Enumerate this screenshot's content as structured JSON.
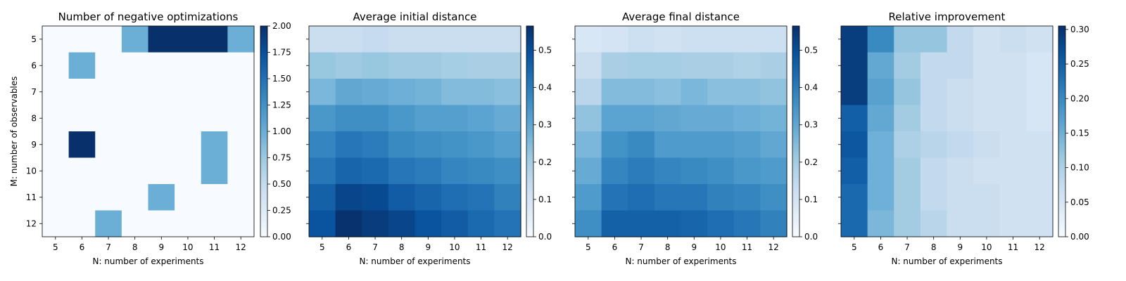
{
  "chart_data": [
    {
      "type": "heatmap",
      "title": "Number of negative optimizations",
      "xlabel": "N: number of experiments",
      "ylabel": "M: number of observables",
      "x": [
        5,
        6,
        7,
        8,
        9,
        10,
        11,
        12
      ],
      "y": [
        5,
        6,
        7,
        8,
        9,
        10,
        11,
        12
      ],
      "values": [
        [
          0,
          0,
          0,
          1,
          2,
          2,
          2,
          1
        ],
        [
          0,
          1,
          0,
          0,
          0,
          0,
          0,
          0
        ],
        [
          0,
          0,
          0,
          0,
          0,
          0,
          0,
          0
        ],
        [
          0,
          0,
          0,
          0,
          0,
          0,
          0,
          0
        ],
        [
          0,
          2,
          0,
          0,
          0,
          0,
          1,
          0
        ],
        [
          0,
          0,
          0,
          0,
          0,
          0,
          1,
          0
        ],
        [
          0,
          0,
          0,
          0,
          1,
          0,
          0,
          0
        ],
        [
          0,
          0,
          1,
          0,
          0,
          0,
          0,
          0
        ]
      ],
      "colorbar": {
        "range": [
          0,
          2
        ],
        "ticks": [
          "0.00",
          "0.25",
          "0.50",
          "0.75",
          "1.00",
          "1.25",
          "1.50",
          "1.75",
          "2.00"
        ]
      },
      "colormap": "Blues"
    },
    {
      "type": "heatmap",
      "title": "Average initial distance",
      "xlabel": "N: number of experiments",
      "ylabel": "",
      "x": [
        5,
        6,
        7,
        8,
        9,
        10,
        11,
        12
      ],
      "y": [
        5,
        6,
        7,
        8,
        9,
        10,
        11,
        12
      ],
      "values": [
        [
          0.13,
          0.13,
          0.14,
          0.13,
          0.13,
          0.13,
          0.13,
          0.13
        ],
        [
          0.22,
          0.21,
          0.22,
          0.21,
          0.21,
          0.2,
          0.19,
          0.19
        ],
        [
          0.26,
          0.3,
          0.29,
          0.28,
          0.27,
          0.25,
          0.25,
          0.24
        ],
        [
          0.34,
          0.36,
          0.36,
          0.34,
          0.32,
          0.32,
          0.31,
          0.29
        ],
        [
          0.38,
          0.41,
          0.4,
          0.37,
          0.36,
          0.35,
          0.34,
          0.32
        ],
        [
          0.41,
          0.45,
          0.44,
          0.41,
          0.4,
          0.38,
          0.37,
          0.36
        ],
        [
          0.46,
          0.52,
          0.51,
          0.47,
          0.45,
          0.43,
          0.42,
          0.39
        ],
        [
          0.49,
          0.56,
          0.54,
          0.52,
          0.49,
          0.47,
          0.44,
          0.42
        ]
      ],
      "colorbar": {
        "range": [
          0,
          0.565
        ],
        "ticks": [
          "0.0",
          "0.1",
          "0.2",
          "0.3",
          "0.4",
          "0.5"
        ]
      },
      "colormap": "Blues"
    },
    {
      "type": "heatmap",
      "title": "Average final distance",
      "xlabel": "N: number of experiments",
      "ylabel": "",
      "x": [
        5,
        6,
        7,
        8,
        9,
        10,
        11,
        12
      ],
      "y": [
        5,
        6,
        7,
        8,
        9,
        10,
        11,
        12
      ],
      "values": [
        [
          0.09,
          0.1,
          0.12,
          0.11,
          0.12,
          0.12,
          0.12,
          0.12
        ],
        [
          0.13,
          0.19,
          0.2,
          0.2,
          0.19,
          0.19,
          0.18,
          0.19
        ],
        [
          0.16,
          0.25,
          0.25,
          0.24,
          0.26,
          0.24,
          0.24,
          0.23
        ],
        [
          0.23,
          0.31,
          0.31,
          0.3,
          0.29,
          0.29,
          0.28,
          0.27
        ],
        [
          0.26,
          0.35,
          0.37,
          0.33,
          0.33,
          0.33,
          0.32,
          0.3
        ],
        [
          0.29,
          0.38,
          0.4,
          0.38,
          0.37,
          0.36,
          0.34,
          0.33
        ],
        [
          0.33,
          0.42,
          0.43,
          0.41,
          0.41,
          0.39,
          0.38,
          0.36
        ],
        [
          0.36,
          0.46,
          0.46,
          0.46,
          0.45,
          0.43,
          0.41,
          0.39
        ]
      ],
      "colorbar": {
        "range": [
          0,
          0.565
        ],
        "ticks": [
          "0.0",
          "0.1",
          "0.2",
          "0.3",
          "0.4",
          "0.5"
        ]
      },
      "colormap": "Blues"
    },
    {
      "type": "heatmap",
      "title": "Relative improvement",
      "xlabel": "N: number of experiments",
      "ylabel": "",
      "x": [
        5,
        6,
        7,
        8,
        9,
        10,
        11,
        12
      ],
      "y": [
        5,
        6,
        7,
        8,
        9,
        10,
        11,
        12
      ],
      "values": [
        [
          0.29,
          0.2,
          0.12,
          0.12,
          0.08,
          0.06,
          0.07,
          0.06
        ],
        [
          0.29,
          0.16,
          0.11,
          0.08,
          0.08,
          0.06,
          0.06,
          0.05
        ],
        [
          0.29,
          0.17,
          0.12,
          0.08,
          0.07,
          0.06,
          0.06,
          0.05
        ],
        [
          0.25,
          0.16,
          0.11,
          0.08,
          0.07,
          0.06,
          0.06,
          0.05
        ],
        [
          0.26,
          0.15,
          0.1,
          0.09,
          0.08,
          0.07,
          0.06,
          0.06
        ],
        [
          0.25,
          0.15,
          0.11,
          0.08,
          0.07,
          0.06,
          0.06,
          0.06
        ],
        [
          0.24,
          0.15,
          0.11,
          0.08,
          0.07,
          0.07,
          0.06,
          0.06
        ],
        [
          0.24,
          0.14,
          0.11,
          0.09,
          0.07,
          0.07,
          0.06,
          0.06
        ]
      ],
      "colorbar": {
        "range": [
          0,
          0.305
        ],
        "ticks": [
          "0.00",
          "0.05",
          "0.10",
          "0.15",
          "0.20",
          "0.25",
          "0.30"
        ]
      },
      "colormap": "Blues"
    }
  ]
}
